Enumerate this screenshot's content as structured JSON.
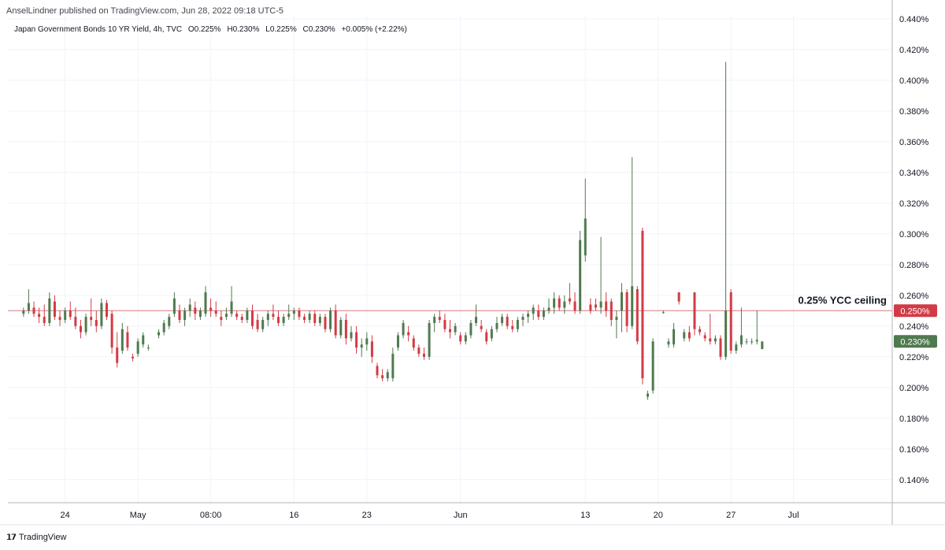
{
  "header": {
    "published": "AnselLindner published on TradingView.com, Jun 28, 2022 09:18 UTC-5"
  },
  "symbol": {
    "name": "Japan Government Bonds 10 YR Yield, 4h, TVC",
    "open": "O0.225%",
    "high": "H0.230%",
    "low": "L0.225%",
    "close": "C0.230%",
    "change": "+0.005% (+2.22%)"
  },
  "footer": {
    "brand": "TradingView"
  },
  "colors": {
    "up": "#4f7a4f",
    "down": "#d23b45",
    "line": "#d47a80",
    "grid": "#f0f3fa",
    "axis": "#b2b5be"
  },
  "chart_data": {
    "type": "candlestick",
    "y_unit": "%",
    "ylim": [
      0.125,
      0.442
    ],
    "y_ticks": [
      "0.140%",
      "0.160%",
      "0.180%",
      "0.200%",
      "0.220%",
      "0.240%",
      "0.260%",
      "0.280%",
      "0.300%",
      "0.320%",
      "0.340%",
      "0.360%",
      "0.380%",
      "0.400%",
      "0.420%",
      "0.440%"
    ],
    "x_ticks": [
      {
        "label": "24",
        "day": 4
      },
      {
        "label": "May",
        "day": 11
      },
      {
        "label": "08:00",
        "day": 18
      },
      {
        "label": "16",
        "day": 26
      },
      {
        "label": "23",
        "day": 33
      },
      {
        "label": "Jun",
        "day": 42
      },
      {
        "label": "13",
        "day": 54
      },
      {
        "label": "20",
        "day": 61
      },
      {
        "label": "27",
        "day": 68
      },
      {
        "label": "Jul",
        "day": 74
      }
    ],
    "x_range": [
      -1.5,
      83.5
    ],
    "hline": {
      "value": 0.25,
      "label": "0.25% YCC ceiling",
      "price_label": "0.250%"
    },
    "last_price_label": "0.230%",
    "candles": [
      {
        "t": 0,
        "o": 0.248,
        "h": 0.252,
        "l": 0.246,
        "c": 0.25
      },
      {
        "t": 0.5,
        "o": 0.25,
        "h": 0.264,
        "l": 0.248,
        "c": 0.255
      },
      {
        "t": 1,
        "o": 0.252,
        "h": 0.256,
        "l": 0.246,
        "c": 0.248
      },
      {
        "t": 1.5,
        "o": 0.248,
        "h": 0.252,
        "l": 0.242,
        "c": 0.246
      },
      {
        "t": 2,
        "o": 0.246,
        "h": 0.254,
        "l": 0.24,
        "c": 0.242
      },
      {
        "t": 2.5,
        "o": 0.242,
        "h": 0.262,
        "l": 0.24,
        "c": 0.258
      },
      {
        "t": 3,
        "o": 0.256,
        "h": 0.26,
        "l": 0.244,
        "c": 0.246
      },
      {
        "t": 3.5,
        "o": 0.246,
        "h": 0.25,
        "l": 0.24,
        "c": 0.244
      },
      {
        "t": 4,
        "o": 0.244,
        "h": 0.252,
        "l": 0.242,
        "c": 0.25
      },
      {
        "t": 4.5,
        "o": 0.25,
        "h": 0.256,
        "l": 0.244,
        "c": 0.246
      },
      {
        "t": 5,
        "o": 0.246,
        "h": 0.252,
        "l": 0.238,
        "c": 0.24
      },
      {
        "t": 5.5,
        "o": 0.24,
        "h": 0.244,
        "l": 0.232,
        "c": 0.236
      },
      {
        "t": 6,
        "o": 0.236,
        "h": 0.248,
        "l": 0.234,
        "c": 0.246
      },
      {
        "t": 6.5,
        "o": 0.246,
        "h": 0.258,
        "l": 0.24,
        "c": 0.244
      },
      {
        "t": 7,
        "o": 0.244,
        "h": 0.25,
        "l": 0.236,
        "c": 0.24
      },
      {
        "t": 7.5,
        "o": 0.24,
        "h": 0.258,
        "l": 0.238,
        "c": 0.255
      },
      {
        "t": 8,
        "o": 0.255,
        "h": 0.257,
        "l": 0.244,
        "c": 0.246
      },
      {
        "t": 8.5,
        "o": 0.248,
        "h": 0.25,
        "l": 0.222,
        "c": 0.226
      },
      {
        "t": 9,
        "o": 0.226,
        "h": 0.236,
        "l": 0.213,
        "c": 0.216
      },
      {
        "t": 9.5,
        "o": 0.224,
        "h": 0.242,
        "l": 0.222,
        "c": 0.238
      },
      {
        "t": 10,
        "o": 0.236,
        "h": 0.24,
        "l": 0.224,
        "c": 0.226
      },
      {
        "t": 10.5,
        "o": 0.22,
        "h": 0.222,
        "l": 0.217,
        "c": 0.219
      },
      {
        "t": 11,
        "o": 0.222,
        "h": 0.232,
        "l": 0.22,
        "c": 0.23
      },
      {
        "t": 11.5,
        "o": 0.228,
        "h": 0.236,
        "l": 0.226,
        "c": 0.234
      },
      {
        "t": 12,
        "o": 0.226,
        "h": 0.228,
        "l": 0.224,
        "c": 0.226
      },
      {
        "t": 13,
        "o": 0.234,
        "h": 0.238,
        "l": 0.232,
        "c": 0.236
      },
      {
        "t": 13.5,
        "o": 0.236,
        "h": 0.244,
        "l": 0.234,
        "c": 0.242
      },
      {
        "t": 14,
        "o": 0.24,
        "h": 0.248,
        "l": 0.238,
        "c": 0.246
      },
      {
        "t": 14.5,
        "o": 0.248,
        "h": 0.262,
        "l": 0.246,
        "c": 0.258
      },
      {
        "t": 15,
        "o": 0.25,
        "h": 0.254,
        "l": 0.242,
        "c": 0.244
      },
      {
        "t": 15.5,
        "o": 0.244,
        "h": 0.252,
        "l": 0.24,
        "c": 0.25
      },
      {
        "t": 16,
        "o": 0.25,
        "h": 0.258,
        "l": 0.246,
        "c": 0.254
      },
      {
        "t": 16.5,
        "o": 0.252,
        "h": 0.256,
        "l": 0.244,
        "c": 0.248
      },
      {
        "t": 17,
        "o": 0.246,
        "h": 0.252,
        "l": 0.244,
        "c": 0.25
      },
      {
        "t": 17.5,
        "o": 0.248,
        "h": 0.266,
        "l": 0.246,
        "c": 0.262
      },
      {
        "t": 18,
        "o": 0.252,
        "h": 0.258,
        "l": 0.246,
        "c": 0.25
      },
      {
        "t": 18.5,
        "o": 0.25,
        "h": 0.256,
        "l": 0.246,
        "c": 0.248
      },
      {
        "t": 19,
        "o": 0.246,
        "h": 0.25,
        "l": 0.24,
        "c": 0.244
      },
      {
        "t": 19.5,
        "o": 0.246,
        "h": 0.252,
        "l": 0.244,
        "c": 0.248
      },
      {
        "t": 20,
        "o": 0.248,
        "h": 0.266,
        "l": 0.246,
        "c": 0.256
      },
      {
        "t": 20.5,
        "o": 0.248,
        "h": 0.25,
        "l": 0.244,
        "c": 0.246
      },
      {
        "t": 21,
        "o": 0.246,
        "h": 0.248,
        "l": 0.242,
        "c": 0.244
      },
      {
        "t": 21.5,
        "o": 0.244,
        "h": 0.252,
        "l": 0.242,
        "c": 0.25
      },
      {
        "t": 22,
        "o": 0.25,
        "h": 0.254,
        "l": 0.238,
        "c": 0.24
      },
      {
        "t": 22.5,
        "o": 0.244,
        "h": 0.248,
        "l": 0.236,
        "c": 0.238
      },
      {
        "t": 23,
        "o": 0.238,
        "h": 0.246,
        "l": 0.236,
        "c": 0.244
      },
      {
        "t": 23.5,
        "o": 0.244,
        "h": 0.25,
        "l": 0.24,
        "c": 0.248
      },
      {
        "t": 24,
        "o": 0.248,
        "h": 0.254,
        "l": 0.244,
        "c": 0.246
      },
      {
        "t": 24.5,
        "o": 0.246,
        "h": 0.25,
        "l": 0.24,
        "c": 0.242
      },
      {
        "t": 25,
        "o": 0.242,
        "h": 0.248,
        "l": 0.24,
        "c": 0.246
      },
      {
        "t": 25.5,
        "o": 0.246,
        "h": 0.254,
        "l": 0.244,
        "c": 0.248
      },
      {
        "t": 26,
        "o": 0.248,
        "h": 0.252,
        "l": 0.244,
        "c": 0.25
      },
      {
        "t": 26.5,
        "o": 0.25,
        "h": 0.252,
        "l": 0.244,
        "c": 0.246
      },
      {
        "t": 27,
        "o": 0.246,
        "h": 0.248,
        "l": 0.242,
        "c": 0.244
      },
      {
        "t": 27.5,
        "o": 0.244,
        "h": 0.25,
        "l": 0.242,
        "c": 0.248
      },
      {
        "t": 28,
        "o": 0.248,
        "h": 0.25,
        "l": 0.24,
        "c": 0.242
      },
      {
        "t": 28.5,
        "o": 0.242,
        "h": 0.248,
        "l": 0.24,
        "c": 0.246
      },
      {
        "t": 29,
        "o": 0.246,
        "h": 0.248,
        "l": 0.236,
        "c": 0.238
      },
      {
        "t": 29.5,
        "o": 0.238,
        "h": 0.252,
        "l": 0.236,
        "c": 0.25
      },
      {
        "t": 30,
        "o": 0.25,
        "h": 0.254,
        "l": 0.232,
        "c": 0.234
      },
      {
        "t": 30.5,
        "o": 0.234,
        "h": 0.246,
        "l": 0.232,
        "c": 0.244
      },
      {
        "t": 31,
        "o": 0.244,
        "h": 0.248,
        "l": 0.228,
        "c": 0.232
      },
      {
        "t": 31.5,
        "o": 0.232,
        "h": 0.24,
        "l": 0.23,
        "c": 0.236
      },
      {
        "t": 32,
        "o": 0.236,
        "h": 0.24,
        "l": 0.222,
        "c": 0.226
      },
      {
        "t": 32.5,
        "o": 0.226,
        "h": 0.232,
        "l": 0.22,
        "c": 0.228
      },
      {
        "t": 33,
        "o": 0.228,
        "h": 0.236,
        "l": 0.224,
        "c": 0.232
      },
      {
        "t": 33.5,
        "o": 0.23,
        "h": 0.234,
        "l": 0.216,
        "c": 0.22
      },
      {
        "t": 34,
        "o": 0.214,
        "h": 0.216,
        "l": 0.206,
        "c": 0.208
      },
      {
        "t": 34.5,
        "o": 0.208,
        "h": 0.212,
        "l": 0.204,
        "c": 0.206
      },
      {
        "t": 35,
        "o": 0.206,
        "h": 0.212,
        "l": 0.204,
        "c": 0.21
      },
      {
        "t": 35.5,
        "o": 0.206,
        "h": 0.226,
        "l": 0.204,
        "c": 0.222
      },
      {
        "t": 36,
        "o": 0.226,
        "h": 0.236,
        "l": 0.224,
        "c": 0.234
      },
      {
        "t": 36.5,
        "o": 0.234,
        "h": 0.244,
        "l": 0.232,
        "c": 0.242
      },
      {
        "t": 37,
        "o": 0.236,
        "h": 0.24,
        "l": 0.23,
        "c": 0.234
      },
      {
        "t": 37.5,
        "o": 0.232,
        "h": 0.234,
        "l": 0.224,
        "c": 0.226
      },
      {
        "t": 38,
        "o": 0.226,
        "h": 0.228,
        "l": 0.22,
        "c": 0.222
      },
      {
        "t": 38.5,
        "o": 0.222,
        "h": 0.226,
        "l": 0.218,
        "c": 0.22
      },
      {
        "t": 39,
        "o": 0.22,
        "h": 0.244,
        "l": 0.218,
        "c": 0.242
      },
      {
        "t": 39.5,
        "o": 0.242,
        "h": 0.248,
        "l": 0.236,
        "c": 0.246
      },
      {
        "t": 40,
        "o": 0.246,
        "h": 0.25,
        "l": 0.242,
        "c": 0.244
      },
      {
        "t": 40.5,
        "o": 0.244,
        "h": 0.248,
        "l": 0.236,
        "c": 0.238
      },
      {
        "t": 41,
        "o": 0.238,
        "h": 0.244,
        "l": 0.232,
        "c": 0.236
      },
      {
        "t": 41.5,
        "o": 0.236,
        "h": 0.242,
        "l": 0.234,
        "c": 0.24
      },
      {
        "t": 42,
        "o": 0.234,
        "h": 0.236,
        "l": 0.228,
        "c": 0.23
      },
      {
        "t": 42.5,
        "o": 0.23,
        "h": 0.236,
        "l": 0.228,
        "c": 0.234
      },
      {
        "t": 43,
        "o": 0.234,
        "h": 0.244,
        "l": 0.232,
        "c": 0.242
      },
      {
        "t": 43.5,
        "o": 0.242,
        "h": 0.254,
        "l": 0.24,
        "c": 0.246
      },
      {
        "t": 44,
        "o": 0.24,
        "h": 0.244,
        "l": 0.236,
        "c": 0.238
      },
      {
        "t": 44.5,
        "o": 0.236,
        "h": 0.238,
        "l": 0.228,
        "c": 0.23
      },
      {
        "t": 45,
        "o": 0.232,
        "h": 0.24,
        "l": 0.23,
        "c": 0.238
      },
      {
        "t": 45.5,
        "o": 0.238,
        "h": 0.246,
        "l": 0.236,
        "c": 0.242
      },
      {
        "t": 46,
        "o": 0.242,
        "h": 0.248,
        "l": 0.24,
        "c": 0.246
      },
      {
        "t": 46.5,
        "o": 0.246,
        "h": 0.248,
        "l": 0.238,
        "c": 0.24
      },
      {
        "t": 47,
        "o": 0.24,
        "h": 0.244,
        "l": 0.236,
        "c": 0.238
      },
      {
        "t": 47.5,
        "o": 0.238,
        "h": 0.246,
        "l": 0.236,
        "c": 0.244
      },
      {
        "t": 48,
        "o": 0.244,
        "h": 0.248,
        "l": 0.24,
        "c": 0.246
      },
      {
        "t": 48.5,
        "o": 0.246,
        "h": 0.25,
        "l": 0.242,
        "c": 0.248
      },
      {
        "t": 49,
        "o": 0.248,
        "h": 0.254,
        "l": 0.244,
        "c": 0.252
      },
      {
        "t": 49.5,
        "o": 0.25,
        "h": 0.254,
        "l": 0.244,
        "c": 0.246
      },
      {
        "t": 50,
        "o": 0.246,
        "h": 0.252,
        "l": 0.244,
        "c": 0.25
      },
      {
        "t": 50.5,
        "o": 0.25,
        "h": 0.258,
        "l": 0.248,
        "c": 0.252
      },
      {
        "t": 51,
        "o": 0.252,
        "h": 0.262,
        "l": 0.248,
        "c": 0.258
      },
      {
        "t": 51.5,
        "o": 0.258,
        "h": 0.26,
        "l": 0.25,
        "c": 0.252
      },
      {
        "t": 52,
        "o": 0.252,
        "h": 0.26,
        "l": 0.248,
        "c": 0.256
      },
      {
        "t": 52.5,
        "o": 0.258,
        "h": 0.268,
        "l": 0.254,
        "c": 0.256
      },
      {
        "t": 53,
        "o": 0.256,
        "h": 0.262,
        "l": 0.248,
        "c": 0.25
      },
      {
        "t": 53.5,
        "o": 0.25,
        "h": 0.302,
        "l": 0.248,
        "c": 0.296
      },
      {
        "t": 54,
        "o": 0.286,
        "h": 0.336,
        "l": 0.282,
        "c": 0.31
      },
      {
        "t": 54.5,
        "o": 0.254,
        "h": 0.258,
        "l": 0.248,
        "c": 0.25
      },
      {
        "t": 55,
        "o": 0.254,
        "h": 0.258,
        "l": 0.25,
        "c": 0.252
      },
      {
        "t": 55.5,
        "o": 0.252,
        "h": 0.298,
        "l": 0.248,
        "c": 0.256
      },
      {
        "t": 56,
        "o": 0.256,
        "h": 0.262,
        "l": 0.246,
        "c": 0.25
      },
      {
        "t": 56.5,
        "o": 0.256,
        "h": 0.258,
        "l": 0.24,
        "c": 0.244
      },
      {
        "t": 57,
        "o": 0.244,
        "h": 0.25,
        "l": 0.232,
        "c": 0.246
      },
      {
        "t": 57.5,
        "o": 0.25,
        "h": 0.268,
        "l": 0.236,
        "c": 0.262
      },
      {
        "t": 58,
        "o": 0.262,
        "h": 0.264,
        "l": 0.236,
        "c": 0.24
      },
      {
        "t": 58.5,
        "o": 0.24,
        "h": 0.35,
        "l": 0.238,
        "c": 0.266
      },
      {
        "t": 59,
        "o": 0.264,
        "h": 0.266,
        "l": 0.228,
        "c": 0.23
      },
      {
        "t": 59.5,
        "o": 0.302,
        "h": 0.304,
        "l": 0.202,
        "c": 0.206
      },
      {
        "t": 60,
        "o": 0.194,
        "h": 0.198,
        "l": 0.192,
        "c": 0.196
      },
      {
        "t": 60.5,
        "o": 0.198,
        "h": 0.232,
        "l": 0.196,
        "c": 0.23
      },
      {
        "t": 61.5,
        "o": 0.249,
        "h": 0.25,
        "l": 0.248,
        "c": 0.249
      },
      {
        "t": 62,
        "o": 0.228,
        "h": 0.232,
        "l": 0.226,
        "c": 0.23
      },
      {
        "t": 62.5,
        "o": 0.228,
        "h": 0.242,
        "l": 0.226,
        "c": 0.238
      },
      {
        "t": 63,
        "o": 0.262,
        "h": 0.262,
        "l": 0.254,
        "c": 0.256
      },
      {
        "t": 63.5,
        "o": 0.232,
        "h": 0.238,
        "l": 0.23,
        "c": 0.236
      },
      {
        "t": 64,
        "o": 0.236,
        "h": 0.24,
        "l": 0.23,
        "c": 0.232
      },
      {
        "t": 64.5,
        "o": 0.262,
        "h": 0.262,
        "l": 0.234,
        "c": 0.238
      },
      {
        "t": 65,
        "o": 0.238,
        "h": 0.24,
        "l": 0.234,
        "c": 0.236
      },
      {
        "t": 65.5,
        "o": 0.234,
        "h": 0.236,
        "l": 0.23,
        "c": 0.232
      },
      {
        "t": 66,
        "o": 0.232,
        "h": 0.248,
        "l": 0.228,
        "c": 0.23
      },
      {
        "t": 66.5,
        "o": 0.23,
        "h": 0.234,
        "l": 0.228,
        "c": 0.232
      },
      {
        "t": 67,
        "o": 0.232,
        "h": 0.234,
        "l": 0.218,
        "c": 0.22
      },
      {
        "t": 67.5,
        "o": 0.22,
        "h": 0.412,
        "l": 0.218,
        "c": 0.25
      },
      {
        "t": 68,
        "o": 0.262,
        "h": 0.264,
        "l": 0.222,
        "c": 0.224
      },
      {
        "t": 68.5,
        "o": 0.224,
        "h": 0.23,
        "l": 0.222,
        "c": 0.228
      },
      {
        "t": 69,
        "o": 0.228,
        "h": 0.252,
        "l": 0.226,
        "c": 0.234
      },
      {
        "t": 69.5,
        "o": 0.23,
        "h": 0.232,
        "l": 0.228,
        "c": 0.23
      },
      {
        "t": 70,
        "o": 0.23,
        "h": 0.232,
        "l": 0.228,
        "c": 0.23
      },
      {
        "t": 70.5,
        "o": 0.23,
        "h": 0.25,
        "l": 0.228,
        "c": 0.231
      },
      {
        "t": 71,
        "o": 0.225,
        "h": 0.23,
        "l": 0.225,
        "c": 0.23
      }
    ]
  }
}
